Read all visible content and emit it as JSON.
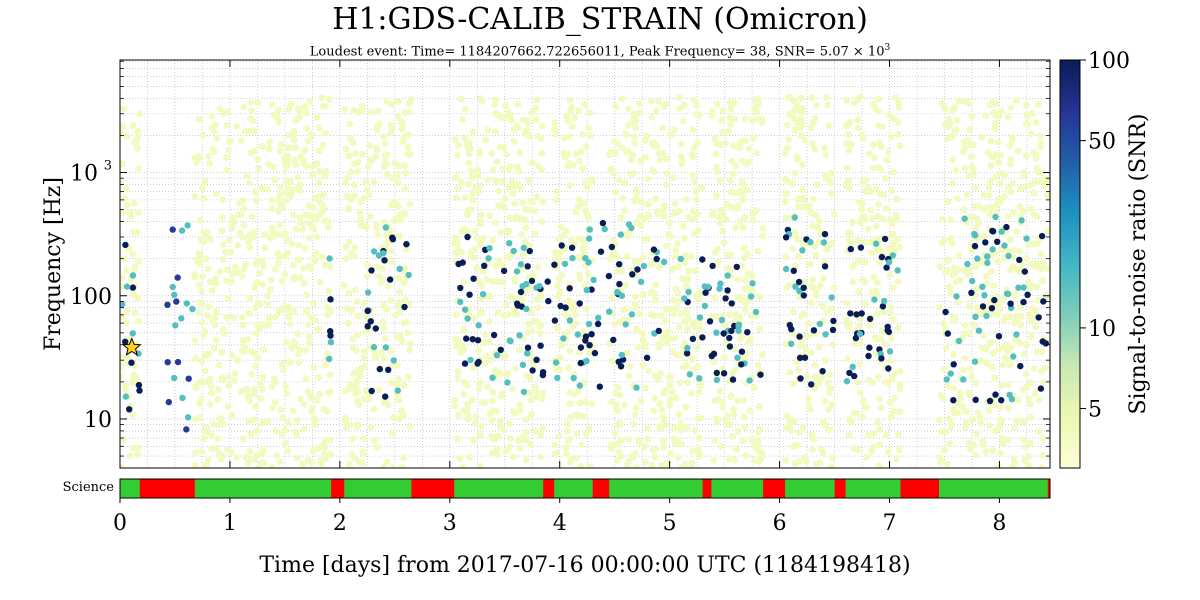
{
  "chart_data": {
    "type": "scatter",
    "title": "H1:GDS-CALIB_STRAIN (Omicron)",
    "subtitle_parts": {
      "prefix": "Loudest event: Time= 1184207662.722656011, Peak Frequency= 38, SNR= 5.07",
      "times": "×",
      "base": "10",
      "exponent": "3"
    },
    "xlabel": "Time [days] from 2017-07-16 00:00:00 UTC (1184198418)",
    "ylabel": "Frequency [Hz]",
    "xlim": [
      0,
      8.46
    ],
    "ylim": [
      4,
      8192
    ],
    "yscale": "log",
    "x_ticks": [
      "0",
      "1",
      "2",
      "3",
      "4",
      "5",
      "6",
      "7",
      "8"
    ],
    "y_tick_values": [
      10,
      100,
      1000
    ],
    "y_ticks": [
      "10",
      "100",
      "10"
    ],
    "y_tick_exponent": "3",
    "colorbar": {
      "label": "Signal-to-noise ratio (SNR)",
      "scale": "log",
      "range": [
        3,
        100
      ],
      "ticks": [
        5,
        10,
        50,
        100
      ],
      "tick_labels": [
        "5",
        "10",
        "50",
        "100"
      ],
      "colormap": [
        "#ffffd9",
        "#edf8b1",
        "#c7e9b4",
        "#7fcdbb",
        "#41b6c4",
        "#1d91c0",
        "#225ea8",
        "#253494",
        "#081d58"
      ]
    },
    "loudest_event": {
      "x": 0.107,
      "y": 38,
      "snr": 5070,
      "marker": "star",
      "color": "#ffd21f"
    },
    "science_segments": {
      "label": "Science",
      "on_color": "#33cc33",
      "off_color": "#ff0000",
      "on": [
        [
          0,
          0.18
        ],
        [
          0.68,
          1.92
        ],
        [
          2.04,
          2.65
        ],
        [
          3.04,
          3.85
        ],
        [
          3.95,
          4.3
        ],
        [
          4.45,
          5.3
        ],
        [
          5.38,
          5.85
        ],
        [
          6.05,
          6.5
        ],
        [
          6.6,
          7.1
        ],
        [
          7.45,
          8.44
        ]
      ]
    },
    "loud_snr": 100,
    "medium_snr": 15,
    "background_snr": 4,
    "background_fmax": 4096,
    "clusters": [
      {
        "x": [
          0.0,
          0.18
        ],
        "f": [
          10,
          400
        ],
        "snr": 100
      },
      {
        "x": [
          0.42,
          0.7
        ],
        "f": [
          8,
          400
        ],
        "snr": 60
      },
      {
        "x": [
          1.9,
          1.92
        ],
        "f": [
          30,
          600
        ],
        "snr": 100
      },
      {
        "x": [
          2.25,
          2.65
        ],
        "f": [
          15,
          400
        ],
        "snr": 100
      },
      {
        "x": [
          3.05,
          3.9
        ],
        "f": [
          16,
          300
        ],
        "snr": 100
      },
      {
        "x": [
          3.95,
          4.95
        ],
        "f": [
          14,
          400
        ],
        "snr": 100
      },
      {
        "x": [
          5.1,
          5.85
        ],
        "f": [
          20,
          200
        ],
        "snr": 100
      },
      {
        "x": [
          6.05,
          6.5
        ],
        "f": [
          18,
          500
        ],
        "snr": 100
      },
      {
        "x": [
          6.6,
          7.1
        ],
        "f": [
          20,
          300
        ],
        "snr": 100
      },
      {
        "x": [
          7.5,
          8.45
        ],
        "f": [
          14,
          500
        ],
        "snr": 100
      }
    ]
  }
}
